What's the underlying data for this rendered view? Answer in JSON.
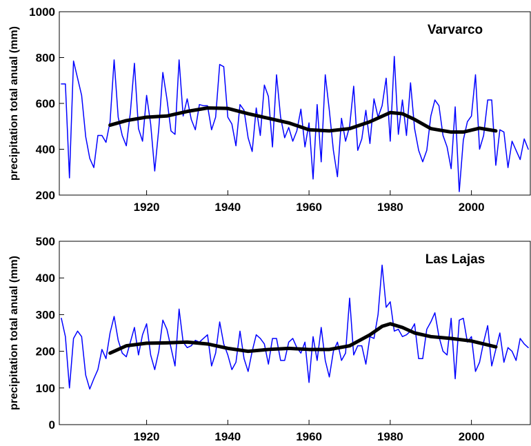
{
  "chart_data": [
    {
      "type": "line",
      "annotation": "Varvarco",
      "ylabel": "precipitation total anual (mm)",
      "x": [
        1899,
        1900,
        1901,
        1902,
        1903,
        1904,
        1905,
        1906,
        1907,
        1908,
        1909,
        1910,
        1911,
        1912,
        1913,
        1914,
        1915,
        1916,
        1917,
        1918,
        1919,
        1920,
        1921,
        1922,
        1923,
        1924,
        1925,
        1926,
        1927,
        1928,
        1929,
        1930,
        1931,
        1932,
        1933,
        1934,
        1935,
        1936,
        1937,
        1938,
        1939,
        1940,
        1941,
        1942,
        1943,
        1944,
        1945,
        1946,
        1947,
        1948,
        1949,
        1950,
        1951,
        1952,
        1953,
        1954,
        1955,
        1956,
        1957,
        1958,
        1959,
        1960,
        1961,
        1962,
        1963,
        1964,
        1965,
        1966,
        1967,
        1968,
        1969,
        1970,
        1971,
        1972,
        1973,
        1974,
        1975,
        1976,
        1977,
        1978,
        1979,
        1980,
        1981,
        1982,
        1983,
        1984,
        1985,
        1986,
        1987,
        1988,
        1989,
        1990,
        1991,
        1992,
        1993,
        1994,
        1995,
        1996,
        1997,
        1998,
        1999,
        2000,
        2001,
        2002,
        2003,
        2004,
        2005,
        2006,
        2007,
        2008,
        2009,
        2010,
        2011,
        2012,
        2013,
        2014
      ],
      "series": [
        {
          "color": "#0000ff",
          "width": 1.5,
          "values": [
            685,
            685,
            275,
            785,
            710,
            635,
            455,
            360,
            320,
            460,
            460,
            430,
            520,
            790,
            540,
            460,
            415,
            560,
            775,
            490,
            435,
            635,
            510,
            305,
            490,
            735,
            620,
            480,
            465,
            790,
            545,
            620,
            530,
            485,
            595,
            590,
            590,
            485,
            540,
            770,
            760,
            540,
            510,
            415,
            595,
            570,
            450,
            390,
            580,
            460,
            680,
            630,
            410,
            725,
            540,
            450,
            495,
            435,
            480,
            575,
            410,
            515,
            270,
            595,
            345,
            725,
            570,
            395,
            280,
            535,
            435,
            500,
            675,
            395,
            445,
            570,
            425,
            620,
            540,
            590,
            710,
            435,
            805,
            465,
            615,
            460,
            690,
            490,
            395,
            345,
            395,
            545,
            615,
            590,
            460,
            410,
            315,
            585,
            215,
            440,
            520,
            545,
            725,
            400,
            460,
            615,
            615,
            330,
            485,
            475,
            320,
            435,
            395,
            355,
            445,
            400
          ]
        },
        {
          "color": "#000000",
          "width": 5,
          "x": [
            1911,
            1915,
            1920,
            1925,
            1930,
            1935,
            1940,
            1945,
            1950,
            1955,
            1960,
            1965,
            1970,
            1975,
            1980,
            1983,
            1986,
            1990,
            1995,
            1998,
            2002,
            2006
          ],
          "values": [
            505,
            525,
            540,
            545,
            565,
            580,
            578,
            555,
            535,
            515,
            485,
            480,
            490,
            520,
            560,
            555,
            530,
            490,
            475,
            475,
            492,
            480
          ]
        }
      ],
      "xlim": [
        1898.5,
        2014.5
      ],
      "xticks": [
        1920,
        1940,
        1960,
        1980,
        2000
      ],
      "ylim": [
        200,
        1000
      ],
      "yticks": [
        200,
        400,
        600,
        800,
        1000
      ]
    },
    {
      "type": "line",
      "annotation": "Las Lajas",
      "ylabel": "precipitation total anual (mm)",
      "x": [
        1899,
        1900,
        1901,
        1902,
        1903,
        1904,
        1905,
        1906,
        1907,
        1908,
        1909,
        1910,
        1911,
        1912,
        1913,
        1914,
        1915,
        1916,
        1917,
        1918,
        1919,
        1920,
        1921,
        1922,
        1923,
        1924,
        1925,
        1926,
        1927,
        1928,
        1929,
        1930,
        1931,
        1932,
        1933,
        1934,
        1935,
        1936,
        1937,
        1938,
        1939,
        1940,
        1941,
        1942,
        1943,
        1944,
        1945,
        1946,
        1947,
        1948,
        1949,
        1950,
        1951,
        1952,
        1953,
        1954,
        1955,
        1956,
        1957,
        1958,
        1959,
        1960,
        1961,
        1962,
        1963,
        1964,
        1965,
        1966,
        1967,
        1968,
        1969,
        1970,
        1971,
        1972,
        1973,
        1974,
        1975,
        1976,
        1977,
        1978,
        1979,
        1980,
        1981,
        1982,
        1983,
        1984,
        1985,
        1986,
        1987,
        1988,
        1989,
        1990,
        1991,
        1992,
        1993,
        1994,
        1995,
        1996,
        1997,
        1998,
        1999,
        2000,
        2001,
        2002,
        2003,
        2004,
        2005,
        2006,
        2007,
        2008,
        2009,
        2010,
        2011,
        2012,
        2013,
        2014
      ],
      "series": [
        {
          "color": "#0000ff",
          "width": 1.5,
          "values": [
            290,
            240,
            100,
            235,
            255,
            240,
            135,
            97,
            125,
            150,
            205,
            180,
            250,
            295,
            230,
            195,
            185,
            225,
            265,
            190,
            245,
            275,
            190,
            150,
            200,
            285,
            260,
            210,
            160,
            315,
            225,
            210,
            215,
            230,
            225,
            235,
            245,
            160,
            195,
            280,
            220,
            190,
            150,
            170,
            255,
            180,
            145,
            200,
            245,
            235,
            220,
            165,
            235,
            235,
            175,
            175,
            225,
            235,
            210,
            195,
            225,
            115,
            240,
            175,
            265,
            175,
            130,
            200,
            225,
            175,
            195,
            345,
            190,
            215,
            215,
            165,
            240,
            235,
            300,
            435,
            320,
            335,
            255,
            260,
            240,
            245,
            255,
            275,
            180,
            180,
            260,
            280,
            305,
            240,
            200,
            190,
            290,
            125,
            285,
            290,
            225,
            240,
            145,
            170,
            225,
            270,
            160,
            205,
            250,
            170,
            210,
            200,
            175,
            235,
            220,
            210
          ]
        },
        {
          "color": "#000000",
          "width": 5,
          "x": [
            1911,
            1915,
            1920,
            1925,
            1930,
            1935,
            1940,
            1945,
            1950,
            1955,
            1960,
            1965,
            1970,
            1975,
            1978,
            1980,
            1983,
            1986,
            1990,
            1995,
            2000,
            2006
          ],
          "values": [
            195,
            215,
            222,
            223,
            225,
            220,
            208,
            200,
            205,
            208,
            205,
            205,
            215,
            245,
            268,
            275,
            265,
            250,
            240,
            235,
            228,
            212
          ]
        }
      ],
      "xlim": [
        1898.5,
        2014.5
      ],
      "xticks": [
        1920,
        1940,
        1960,
        1980,
        2000
      ],
      "ylim": [
        0,
        500
      ],
      "yticks": [
        0,
        100,
        200,
        300,
        400,
        500
      ]
    }
  ]
}
